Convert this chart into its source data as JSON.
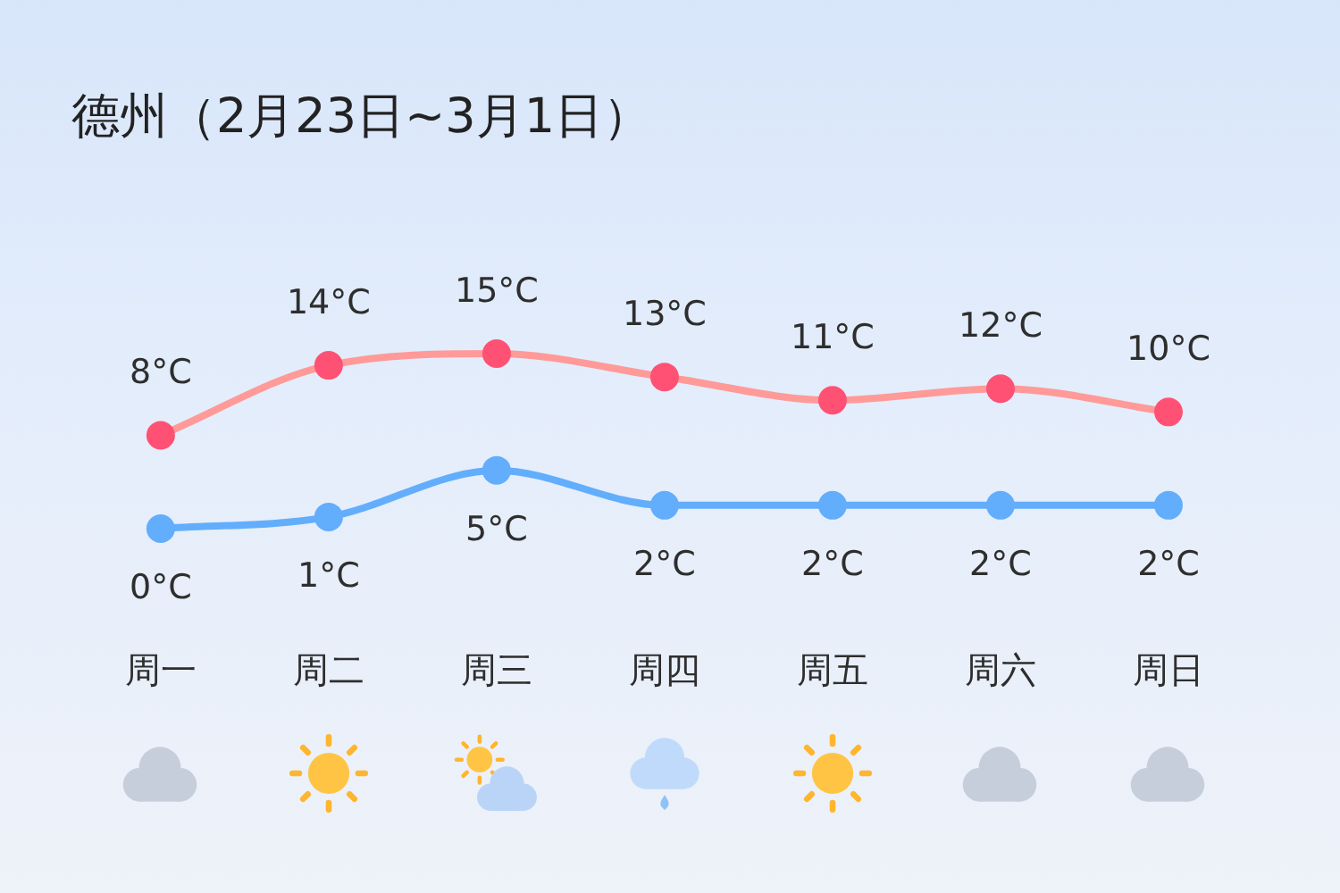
{
  "chart_data": {
    "type": "line",
    "title": "德州（2月23日~3月1日）",
    "categories": [
      "周一",
      "周二",
      "周三",
      "周四",
      "周五",
      "周六",
      "周日"
    ],
    "series": [
      {
        "color": "#ff9a98",
        "colors": [
          "#ff5174",
          "#ff5174",
          "#ff5174",
          "#ff5174",
          "#ff5174",
          "#ff5174",
          "#ff5174"
        ],
        "values": [
          8,
          14,
          15,
          13,
          11,
          12,
          10
        ],
        "value_labels": [
          "8°C",
          "14°C",
          "15°C",
          "13°C",
          "11°C",
          "12°C",
          "10°C"
        ]
      },
      {
        "color": "#62aefc",
        "values": [
          0,
          1,
          5,
          2,
          2,
          2,
          2
        ],
        "value_labels": [
          "0°C",
          "1°C",
          "5°C",
          "2°C",
          "2°C",
          "2°C",
          "2°C"
        ]
      }
    ],
    "tick_labels": "x",
    "grid": false,
    "legend": false,
    "marker": "circle"
  }
}
